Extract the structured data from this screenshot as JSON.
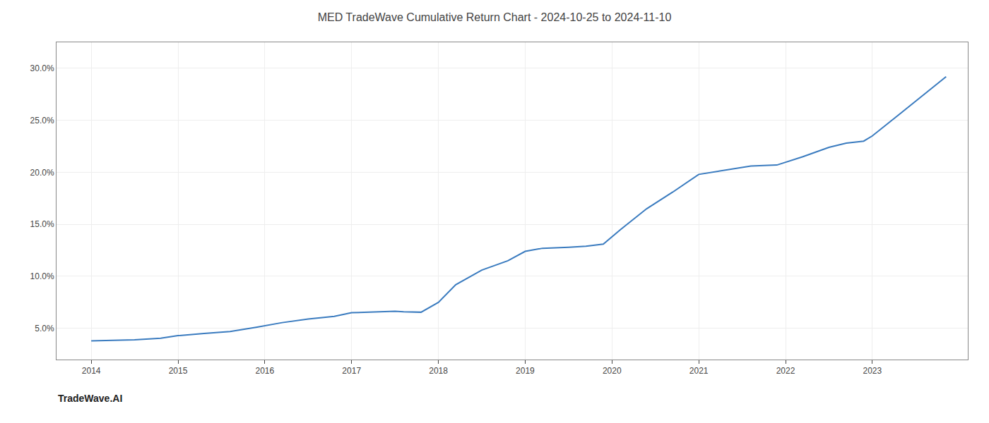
{
  "chart_data": {
    "type": "line",
    "title": "MED TradeWave Cumulative Return Chart - 2024-10-25 to 2024-11-10",
    "annotations": [
      "TradeWave.AI"
    ],
    "x": [
      2014.0,
      2014.2,
      2014.5,
      2014.8,
      2015.0,
      2015.3,
      2015.6,
      2015.9,
      2016.2,
      2016.5,
      2016.8,
      2017.0,
      2017.3,
      2017.5,
      2017.6,
      2017.8,
      2018.0,
      2018.2,
      2018.5,
      2018.8,
      2019.0,
      2019.2,
      2019.5,
      2019.7,
      2019.9,
      2020.1,
      2020.4,
      2020.7,
      2021.0,
      2021.3,
      2021.6,
      2021.9,
      2022.2,
      2022.5,
      2022.7,
      2022.9,
      2023.0,
      2023.3,
      2023.6,
      2023.85
    ],
    "values": [
      3.8,
      3.85,
      3.9,
      4.05,
      4.3,
      4.5,
      4.7,
      5.1,
      5.55,
      5.9,
      6.15,
      6.5,
      6.6,
      6.65,
      6.6,
      6.55,
      7.5,
      9.2,
      10.6,
      11.5,
      12.4,
      12.7,
      12.8,
      12.9,
      13.1,
      14.5,
      16.5,
      18.1,
      19.8,
      20.2,
      20.6,
      20.7,
      21.5,
      22.4,
      22.8,
      23.0,
      23.5,
      25.5,
      27.5,
      29.2
    ],
    "color": "#3a7bbf",
    "xlim": [
      2013.6,
      2024.1
    ],
    "ylim": [
      2.0,
      32.5
    ],
    "xticks": [
      2014,
      2015,
      2016,
      2017,
      2018,
      2019,
      2020,
      2021,
      2022,
      2023
    ],
    "yticks": [
      {
        "value": 5.0,
        "label": "5.0%"
      },
      {
        "value": 10.0,
        "label": "10.0%"
      },
      {
        "value": 15.0,
        "label": "15.0%"
      },
      {
        "value": 20.0,
        "label": "20.0%"
      },
      {
        "value": 25.0,
        "label": "25.0%"
      },
      {
        "value": 30.0,
        "label": "30.0%"
      }
    ],
    "grid": true
  }
}
